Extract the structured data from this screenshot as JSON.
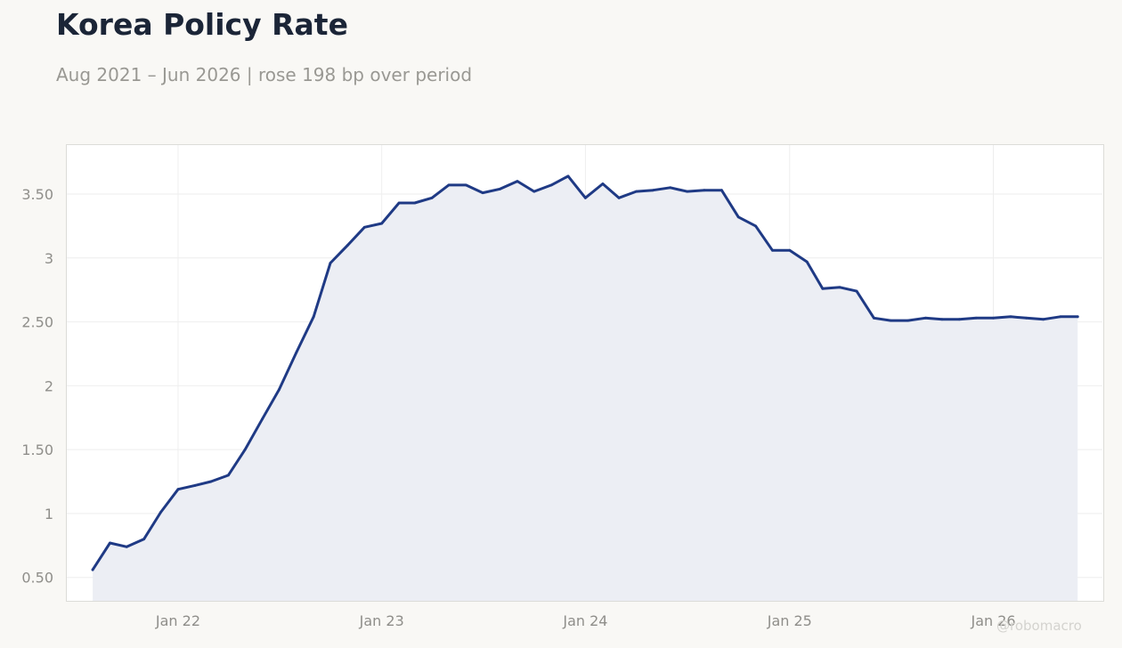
{
  "header": {
    "title": "Korea Policy Rate",
    "subtitle": "Aug 2021 – Jun 2026 | rose 198 bp over period"
  },
  "watermark": "@robomacro",
  "colors": {
    "line": "#1f3a85",
    "area": "#eceef4",
    "grid": "#eeeeee",
    "tick_text": "#8f8e8a",
    "frame": "#dcdcd8"
  },
  "chart_data": {
    "type": "area",
    "title": "Korea Policy Rate",
    "subtitle": "Aug 2021 – Jun 2026 | rose 198 bp over period",
    "xlabel": "",
    "ylabel": "",
    "grid": true,
    "x_range": [
      "2021-06-14",
      "2026-07-17"
    ],
    "ylim": [
      0.31,
      3.89
    ],
    "x_ticks": [
      {
        "date": "2022-01-01",
        "label": "Jan 22"
      },
      {
        "date": "2023-01-01",
        "label": "Jan 23"
      },
      {
        "date": "2024-01-01",
        "label": "Jan 24"
      },
      {
        "date": "2025-01-01",
        "label": "Jan 25"
      },
      {
        "date": "2026-01-01",
        "label": "Jan 26"
      }
    ],
    "y_ticks": [
      {
        "value": 0.5,
        "label": "0.50"
      },
      {
        "value": 1,
        "label": "1"
      },
      {
        "value": 1.5,
        "label": "1.50"
      },
      {
        "value": 2,
        "label": "2"
      },
      {
        "value": 2.5,
        "label": "2.50"
      },
      {
        "value": 3,
        "label": "3"
      },
      {
        "value": 3.5,
        "label": "3.50"
      }
    ],
    "series": [
      {
        "x": [
          "2021-08-01",
          "2021-09-01",
          "2021-10-01",
          "2021-11-01",
          "2021-12-01",
          "2022-01-01",
          "2022-02-01",
          "2022-03-01",
          "2022-04-01",
          "2022-05-01",
          "2022-06-01",
          "2022-07-01",
          "2022-08-01",
          "2022-09-01",
          "2022-10-01",
          "2022-11-01",
          "2022-12-01",
          "2023-01-01",
          "2023-02-01",
          "2023-03-01",
          "2023-04-01",
          "2023-05-01",
          "2023-06-01",
          "2023-07-01",
          "2023-08-01",
          "2023-09-01",
          "2023-10-01",
          "2023-11-01",
          "2023-12-01",
          "2024-01-01",
          "2024-02-01",
          "2024-03-01",
          "2024-04-01",
          "2024-05-01",
          "2024-06-01",
          "2024-07-01",
          "2024-08-01",
          "2024-09-01",
          "2024-10-01",
          "2024-11-01",
          "2024-12-01",
          "2025-01-01",
          "2025-02-01",
          "2025-03-01",
          "2025-04-01",
          "2025-05-01",
          "2025-06-01",
          "2025-07-01",
          "2025-08-01",
          "2025-09-01",
          "2025-10-01",
          "2025-11-01",
          "2025-12-01",
          "2026-01-01",
          "2026-02-01",
          "2026-03-01",
          "2026-04-01",
          "2026-05-01",
          "2026-06-01"
        ],
        "values": [
          0.56,
          0.77,
          0.74,
          0.8,
          1.01,
          1.19,
          1.22,
          1.25,
          1.3,
          1.5,
          1.74,
          1.97,
          2.26,
          2.54,
          2.96,
          3.1,
          3.24,
          3.27,
          3.43,
          3.43,
          3.47,
          3.57,
          3.57,
          3.51,
          3.54,
          3.6,
          3.52,
          3.57,
          3.64,
          3.47,
          3.58,
          3.47,
          3.52,
          3.53,
          3.55,
          3.52,
          3.53,
          3.53,
          3.32,
          3.25,
          3.06,
          3.06,
          2.97,
          2.76,
          2.77,
          2.74,
          2.53,
          2.51,
          2.51,
          2.53,
          2.52,
          2.52,
          2.53,
          2.53,
          2.54,
          2.53,
          2.52,
          2.54,
          2.54
        ]
      }
    ]
  }
}
